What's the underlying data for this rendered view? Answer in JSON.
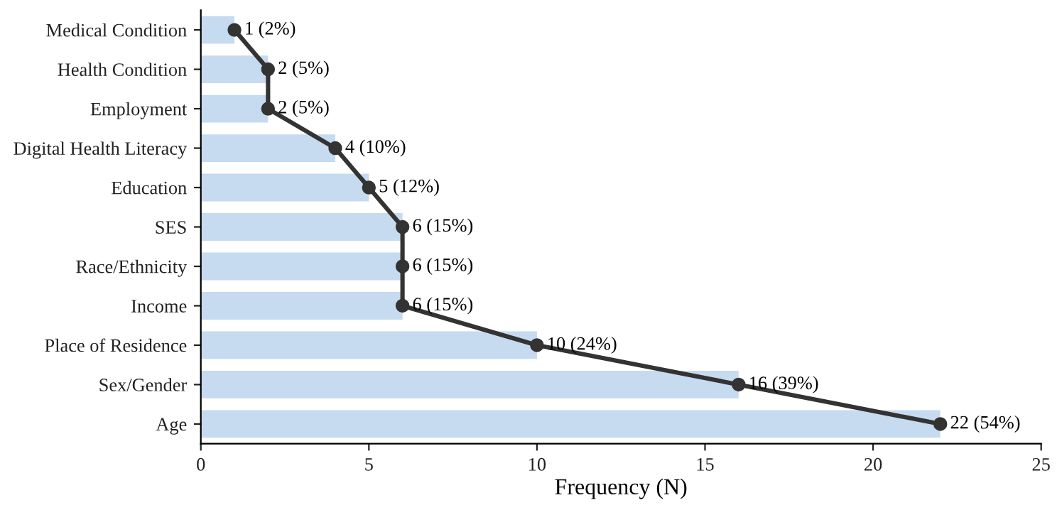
{
  "chart_data": {
    "type": "bar",
    "orientation": "horizontal",
    "xlabel": "Frequency (N)",
    "categories": [
      "Medical Condition",
      "Health Condition",
      "Employment",
      "Digital Health Literacy",
      "Education",
      "SES",
      "Race/Ethnicity",
      "Income",
      "Place of Residence",
      "Sex/Gender",
      "Age"
    ],
    "series": [
      {
        "color": "#c6daf0",
        "values": [
          1,
          2,
          2,
          4,
          5,
          6,
          6,
          6,
          10,
          16,
          22
        ]
      },
      {
        "type": "line",
        "color": "#333333",
        "marker": "circle",
        "line_style": "solid",
        "values": [
          1,
          2,
          2,
          4,
          5,
          6,
          6,
          6,
          10,
          16,
          22
        ],
        "value_labels": [
          "1 (2%)",
          "2 (5%)",
          "2 (5%)",
          "4 (10%)",
          "5 (12%)",
          "6 (15%)",
          "6 (15%)",
          "6 (15%)",
          "10 (24%)",
          "16 (39%)",
          "22 (54%)"
        ]
      }
    ],
    "xlim": [
      0,
      25
    ],
    "xticks": [
      0,
      5,
      10,
      15,
      20,
      25
    ],
    "grid": false,
    "legend": false
  }
}
